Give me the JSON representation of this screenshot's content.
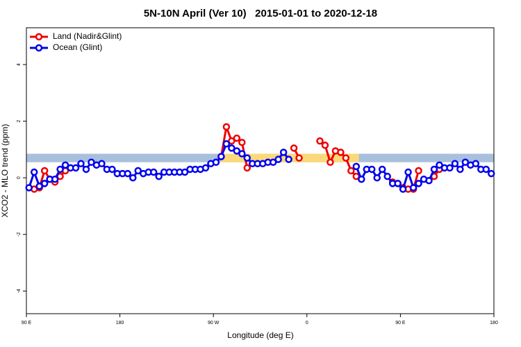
{
  "chart_data": {
    "type": "line",
    "title": "5N-10N April (Ver 10)   2015-01-01 to 2020-12-18",
    "xlabel": "Longitude (deg E)",
    "ylabel": "XCO2 - MLO trend (ppm)",
    "xlim": [
      90,
      540
    ],
    "ylim": [
      -4.8,
      5.3
    ],
    "xticks": [
      {
        "value": 90,
        "label": "90 E"
      },
      {
        "value": 180,
        "label": "180"
      },
      {
        "value": 270,
        "label": "90 W"
      },
      {
        "value": 360,
        "label": "0"
      },
      {
        "value": 450,
        "label": "90 E"
      },
      {
        "value": 540,
        "label": "180"
      }
    ],
    "yticks": [
      -4,
      -2,
      0,
      2,
      4
    ],
    "legend": "top-left",
    "reference_band": {
      "range": [
        0.55,
        0.85
      ],
      "color": "#a9c0dd",
      "highlight_range": [
        277,
        410
      ],
      "highlight_color": "#fbd97a"
    },
    "x": [
      92.5,
      97.5,
      102.5,
      107.5,
      112.5,
      117.5,
      122.5,
      127.5,
      132.5,
      137.5,
      142.5,
      147.5,
      152.5,
      157.5,
      162.5,
      167.5,
      172.5,
      177.5,
      182.5,
      187.5,
      192.5,
      197.5,
      202.5,
      207.5,
      212.5,
      217.5,
      222.5,
      227.5,
      232.5,
      237.5,
      242.5,
      247.5,
      252.5,
      257.5,
      262.5,
      267.5,
      272.5,
      277.5,
      282.5,
      287.5,
      292.5,
      297.5,
      302.5,
      307.5,
      312.5,
      317.5,
      322.5,
      327.5,
      332.5,
      337.5,
      342.5,
      347.5,
      352.5,
      357.5,
      362.5,
      367.5,
      372.5,
      377.5,
      382.5,
      387.5,
      392.5,
      397.5,
      402.5,
      407.5,
      412.5,
      417.5,
      422.5,
      427.5,
      432.5,
      437.5,
      442.5,
      447.5,
      452.5,
      457.5,
      462.5,
      467.5,
      472.5,
      477.5,
      482.5,
      487.5,
      492.5,
      497.5,
      502.5,
      507.5,
      512.5,
      517.5,
      522.5,
      527.5,
      532.5,
      537.5
    ],
    "series": [
      {
        "name": "Land (Nadir&Glint)",
        "color": "#ee0000",
        "values": [
          null,
          -0.4,
          -0.35,
          0.25,
          -0.05,
          -0.15,
          0.05,
          0.25,
          null,
          null,
          null,
          null,
          null,
          null,
          null,
          null,
          null,
          null,
          null,
          null,
          null,
          null,
          null,
          null,
          null,
          null,
          null,
          null,
          null,
          null,
          null,
          null,
          null,
          null,
          null,
          null,
          null,
          0.75,
          1.8,
          1.3,
          1.4,
          1.25,
          0.35,
          null,
          null,
          null,
          null,
          null,
          null,
          null,
          null,
          1.05,
          0.7,
          null,
          null,
          null,
          1.3,
          1.15,
          0.55,
          0.95,
          0.9,
          0.7,
          0.25,
          0.05,
          null,
          null,
          null,
          null,
          null,
          null,
          -0.15,
          -0.2,
          -0.35,
          -0.4,
          -0.4,
          0.25,
          null,
          null,
          0.05,
          0.3,
          null,
          null,
          null,
          null,
          null,
          null,
          null,
          null,
          null,
          null
        ]
      },
      {
        "name": "Ocean (Glint)",
        "color": "#0000ee",
        "values": [
          -0.35,
          0.2,
          -0.3,
          -0.2,
          -0.05,
          -0.05,
          0.3,
          0.45,
          0.35,
          0.35,
          0.5,
          0.3,
          0.55,
          0.45,
          0.5,
          0.3,
          0.3,
          0.15,
          0.15,
          0.15,
          0.0,
          0.25,
          0.15,
          0.2,
          0.2,
          0.05,
          0.2,
          0.2,
          0.2,
          0.2,
          0.2,
          0.3,
          0.3,
          0.3,
          0.35,
          0.5,
          0.55,
          0.75,
          1.2,
          1.05,
          0.95,
          0.85,
          0.7,
          0.5,
          0.5,
          0.5,
          0.55,
          0.55,
          0.65,
          0.9,
          0.65,
          null,
          null,
          null,
          null,
          null,
          null,
          null,
          null,
          null,
          null,
          null,
          null,
          0.4,
          -0.05,
          0.3,
          0.3,
          0.0,
          0.3,
          0.05,
          -0.2,
          -0.2,
          -0.4,
          0.2,
          -0.35,
          -0.2,
          -0.05,
          -0.1,
          0.3,
          0.45,
          0.35,
          0.35,
          0.5,
          0.3,
          0.55,
          0.45,
          0.5,
          0.3,
          0.3,
          0.15
        ]
      }
    ]
  }
}
